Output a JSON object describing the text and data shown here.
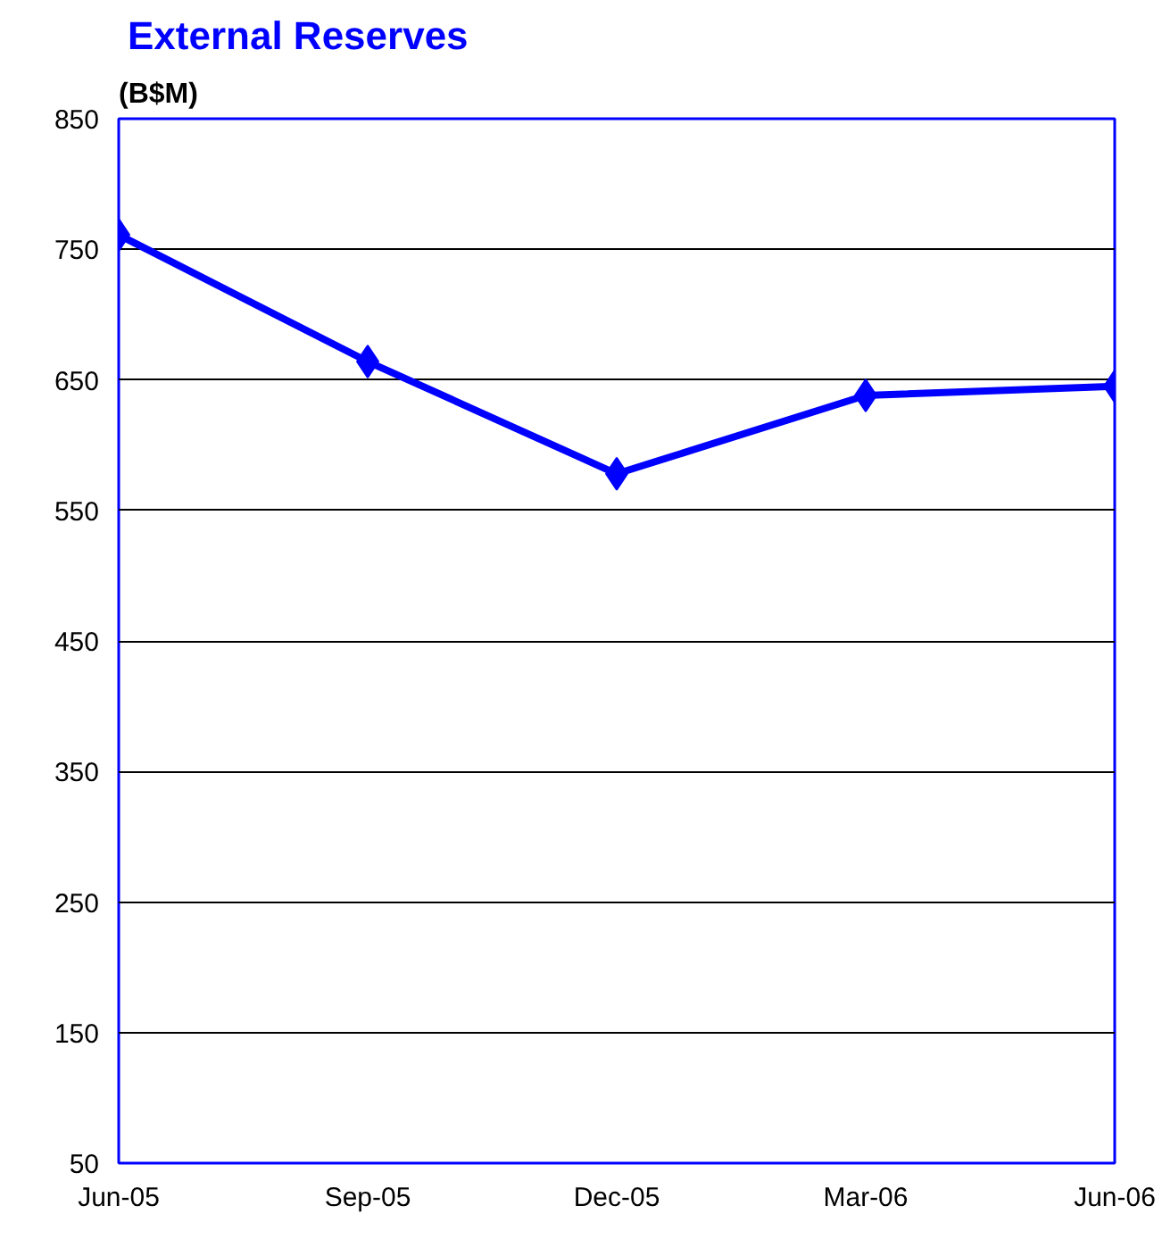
{
  "chart_data": {
    "type": "line",
    "title": "External Reserves",
    "ylabel": "(B$M)",
    "categories": [
      "Jun-05",
      "Sep-05",
      "Dec-05",
      "Mar-06",
      "Jun-06"
    ],
    "series": [
      {
        "color": "#0000ff",
        "values": [
          761,
          664,
          578,
          638,
          645
        ]
      }
    ],
    "ylim": [
      50,
      850
    ],
    "yticks": [
      50,
      150,
      250,
      350,
      450,
      550,
      650,
      750,
      850
    ],
    "grid": "y",
    "marker": "diamond",
    "line_style": "solid"
  }
}
